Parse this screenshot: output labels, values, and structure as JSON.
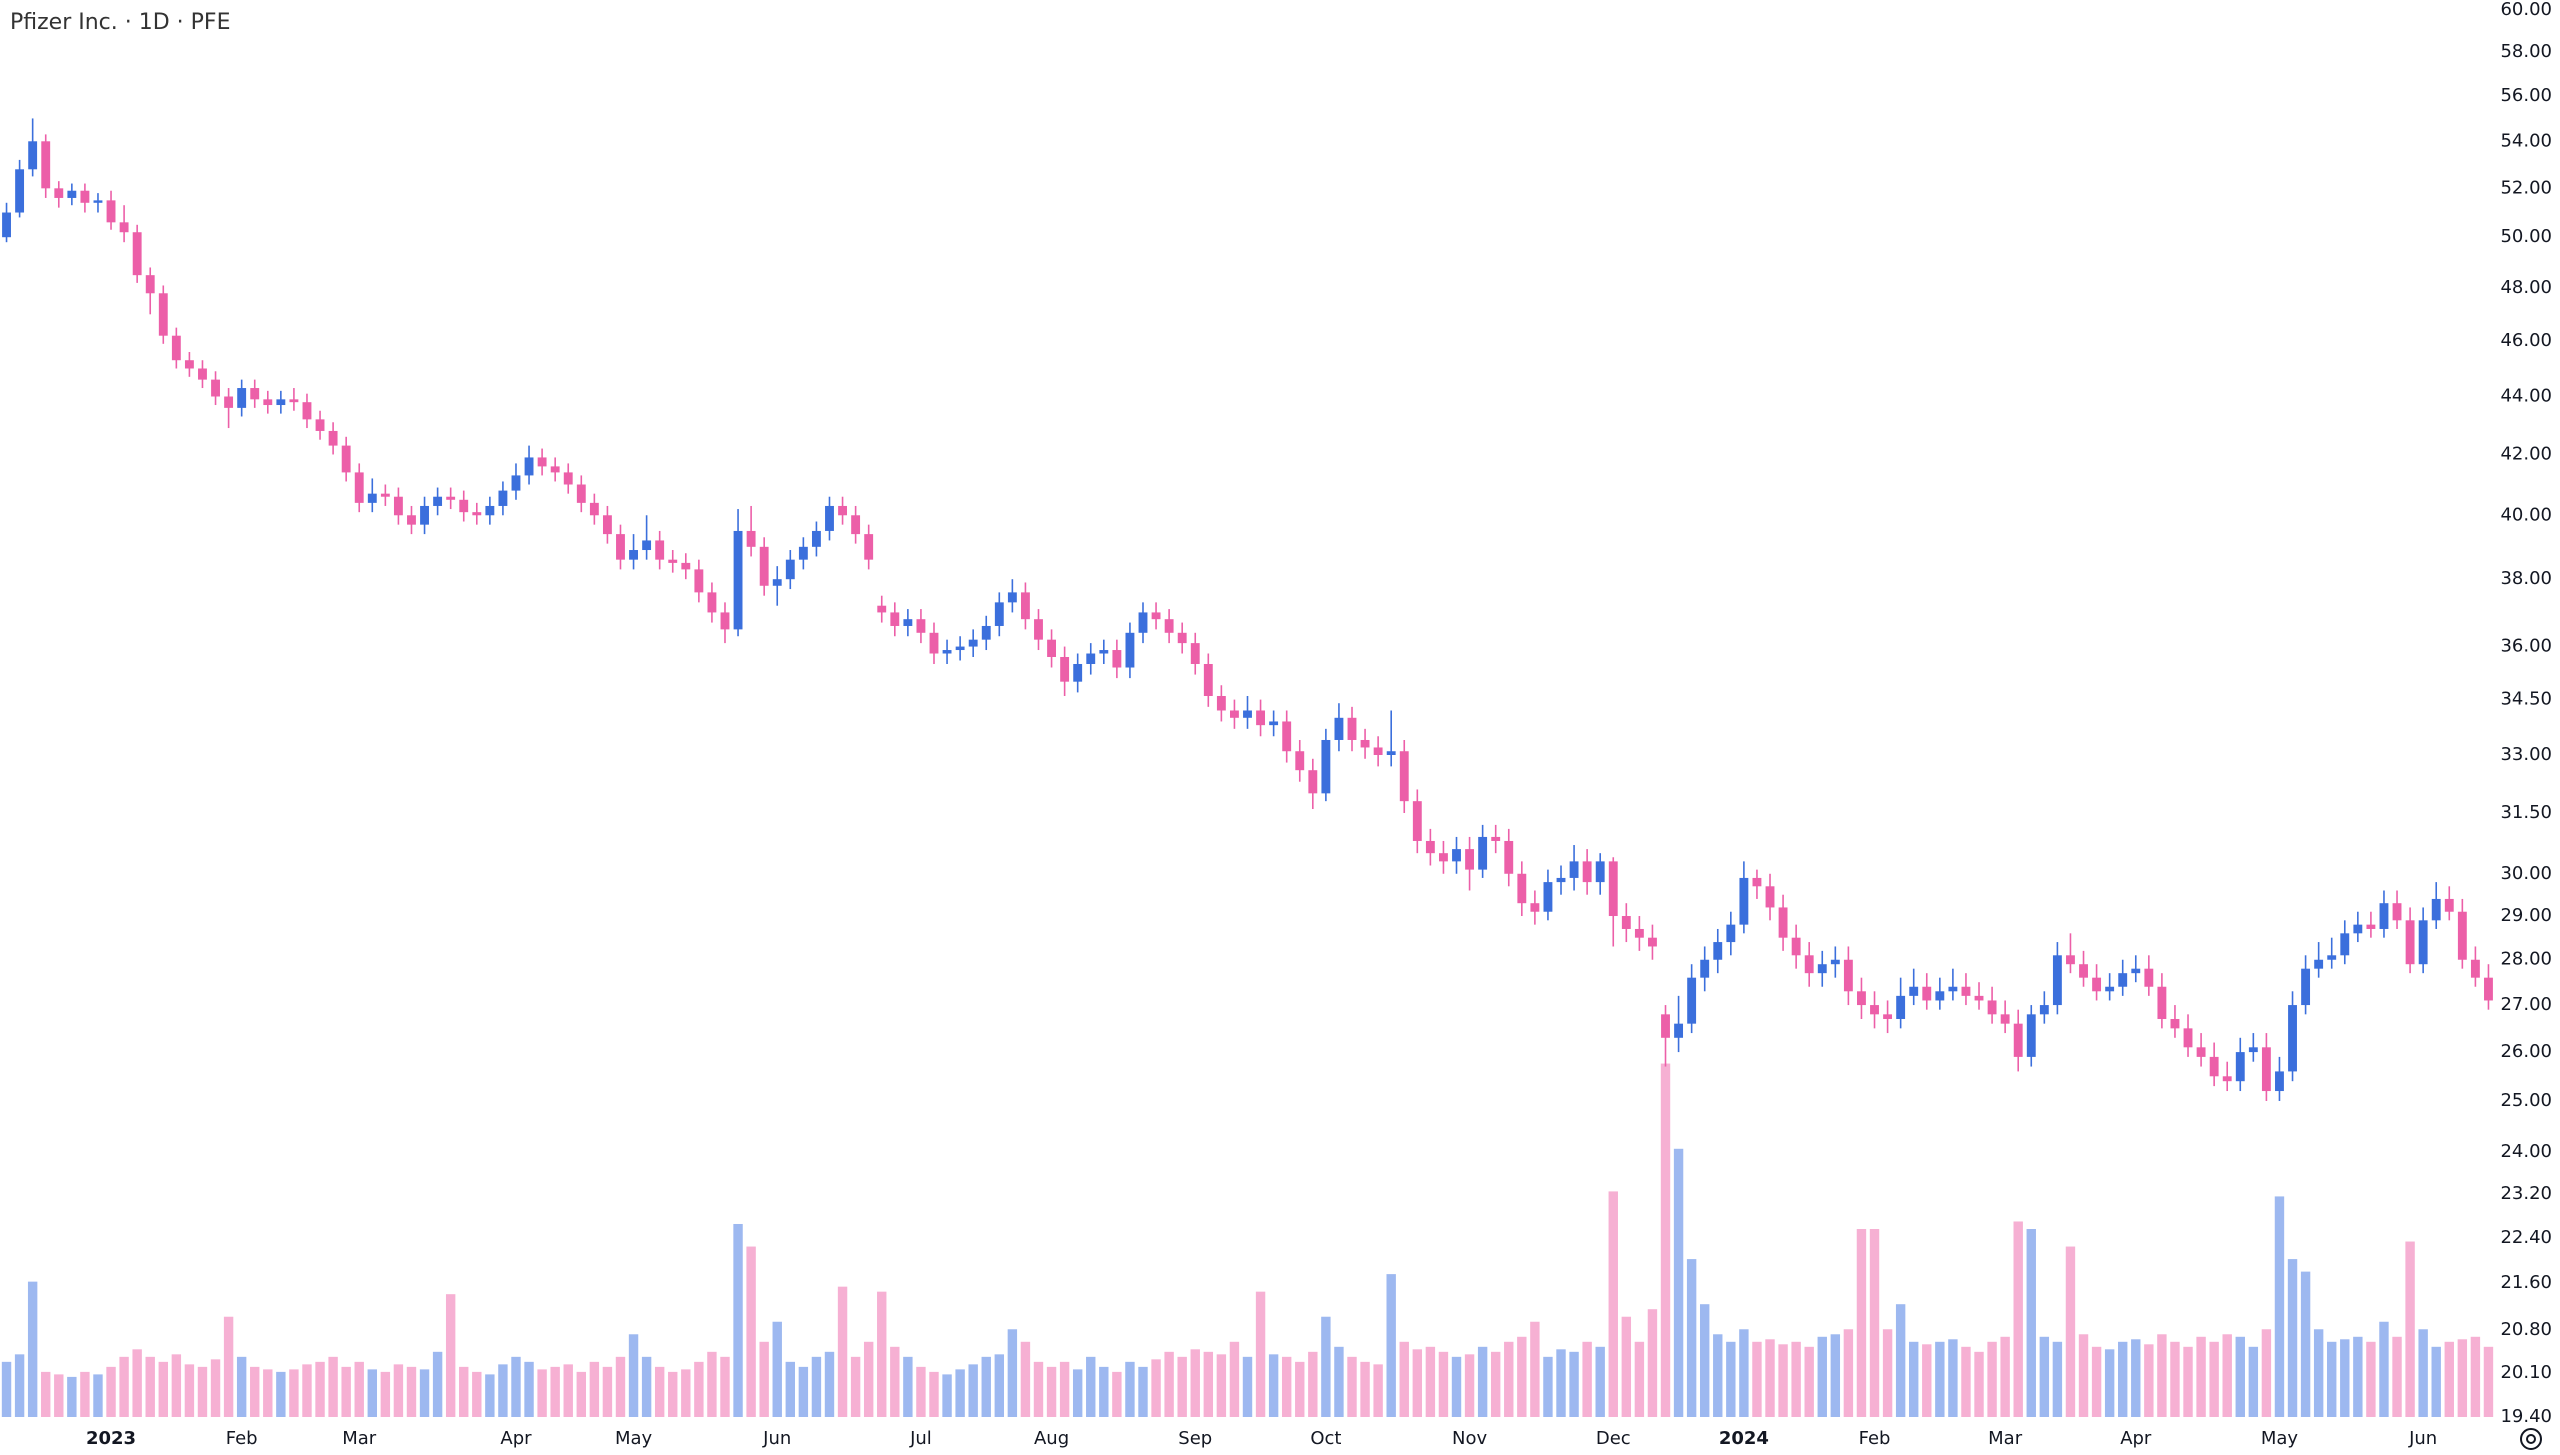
{
  "chart_data": {
    "type": "candlestick",
    "title": "Pfizer Inc. · 1D · PFE",
    "log_scale": true,
    "grid": false,
    "up_color": "#3b6fdc",
    "down_color": "#ec5fa8",
    "volume_up_color": "#9db8f0",
    "volume_down_color": "#f6b0d3",
    "xlim": [
      -0.5,
      190.5
    ],
    "xticks": [
      {
        "value": 8,
        "label": "2023"
      },
      {
        "value": 18,
        "label": "Feb"
      },
      {
        "value": 27,
        "label": "Mar"
      },
      {
        "value": 39,
        "label": "Apr"
      },
      {
        "value": 48,
        "label": "May"
      },
      {
        "value": 59,
        "label": "Jun"
      },
      {
        "value": 70,
        "label": "Jul"
      },
      {
        "value": 80,
        "label": "Aug"
      },
      {
        "value": 91,
        "label": "Sep"
      },
      {
        "value": 101,
        "label": "Oct"
      },
      {
        "value": 112,
        "label": "Nov"
      },
      {
        "value": 123,
        "label": "Dec"
      },
      {
        "value": 133,
        "label": "2024"
      },
      {
        "value": 143,
        "label": "Feb"
      },
      {
        "value": 153,
        "label": "Mar"
      },
      {
        "value": 163,
        "label": "Apr"
      },
      {
        "value": 174,
        "label": "May"
      },
      {
        "value": 185,
        "label": "Jun"
      }
    ],
    "ylim": [
      19.4,
      60
    ],
    "yticks": [
      {
        "value": 60,
        "label": "60.00"
      },
      {
        "value": 58,
        "label": "58.00"
      },
      {
        "value": 56,
        "label": "56.00"
      },
      {
        "value": 54,
        "label": "54.00"
      },
      {
        "value": 52,
        "label": "52.00"
      },
      {
        "value": 50,
        "label": "50.00"
      },
      {
        "value": 48,
        "label": "48.00"
      },
      {
        "value": 46,
        "label": "46.00"
      },
      {
        "value": 44,
        "label": "44.00"
      },
      {
        "value": 42,
        "label": "42.00"
      },
      {
        "value": 40,
        "label": "40.00"
      },
      {
        "value": 38,
        "label": "38.00"
      },
      {
        "value": 36,
        "label": "36.00"
      },
      {
        "value": 34.5,
        "label": "34.50"
      },
      {
        "value": 33,
        "label": "33.00"
      },
      {
        "value": 31.5,
        "label": "31.50"
      },
      {
        "value": 30,
        "label": "30.00"
      },
      {
        "value": 29,
        "label": "29.00"
      },
      {
        "value": 28,
        "label": "28.00"
      },
      {
        "value": 27,
        "label": "27.00"
      },
      {
        "value": 26,
        "label": "26.00"
      },
      {
        "value": 25,
        "label": "25.00"
      },
      {
        "value": 24,
        "label": "24.00"
      },
      {
        "value": 23.2,
        "label": "23.20"
      },
      {
        "value": 22.4,
        "label": "22.40"
      },
      {
        "value": 21.6,
        "label": "21.60"
      },
      {
        "value": 20.8,
        "label": "20.80"
      },
      {
        "value": 20.1,
        "label": "20.10"
      },
      {
        "value": 19.4,
        "label": "19.40"
      }
    ],
    "volume_lim": [
      0,
      150
    ],
    "ohlc": [
      [
        50.0,
        51.4,
        49.8,
        51.0
      ],
      [
        51.0,
        53.2,
        50.8,
        52.8
      ],
      [
        52.8,
        55.0,
        52.5,
        54.0
      ],
      [
        54.0,
        54.3,
        51.6,
        52.0
      ],
      [
        52.0,
        52.3,
        51.2,
        51.6
      ],
      [
        51.6,
        52.2,
        51.3,
        51.9
      ],
      [
        51.9,
        52.2,
        51.0,
        51.4
      ],
      [
        51.4,
        51.8,
        51.0,
        51.5
      ],
      [
        51.5,
        51.9,
        50.3,
        50.6
      ],
      [
        50.6,
        51.3,
        49.8,
        50.2
      ],
      [
        50.2,
        50.5,
        48.2,
        48.5
      ],
      [
        48.5,
        48.8,
        47.0,
        47.8
      ],
      [
        47.8,
        48.1,
        45.9,
        46.2
      ],
      [
        46.2,
        46.5,
        45.0,
        45.3
      ],
      [
        45.3,
        45.6,
        44.7,
        45.0
      ],
      [
        45.0,
        45.3,
        44.3,
        44.6
      ],
      [
        44.6,
        44.9,
        43.7,
        44.0
      ],
      [
        44.0,
        44.3,
        42.9,
        43.6
      ],
      [
        43.6,
        44.6,
        43.3,
        44.3
      ],
      [
        44.3,
        44.6,
        43.6,
        43.9
      ],
      [
        43.9,
        44.2,
        43.4,
        43.7
      ],
      [
        43.7,
        44.2,
        43.4,
        43.9
      ],
      [
        43.9,
        44.3,
        43.5,
        43.8
      ],
      [
        43.8,
        44.1,
        42.9,
        43.2
      ],
      [
        43.2,
        43.5,
        42.5,
        42.8
      ],
      [
        42.8,
        43.1,
        42.0,
        42.3
      ],
      [
        42.3,
        42.6,
        41.1,
        41.4
      ],
      [
        41.4,
        41.7,
        40.1,
        40.4
      ],
      [
        40.4,
        41.2,
        40.1,
        40.7
      ],
      [
        40.7,
        41.0,
        40.3,
        40.6
      ],
      [
        40.6,
        40.9,
        39.7,
        40.0
      ],
      [
        40.0,
        40.3,
        39.4,
        39.7
      ],
      [
        39.7,
        40.6,
        39.4,
        40.3
      ],
      [
        40.3,
        40.9,
        40.0,
        40.6
      ],
      [
        40.6,
        40.9,
        40.2,
        40.5
      ],
      [
        40.5,
        40.8,
        39.8,
        40.1
      ],
      [
        40.1,
        40.4,
        39.7,
        40.0
      ],
      [
        40.0,
        40.6,
        39.7,
        40.3
      ],
      [
        40.3,
        41.1,
        40.0,
        40.8
      ],
      [
        40.8,
        41.7,
        40.5,
        41.3
      ],
      [
        41.3,
        42.3,
        41.0,
        41.9
      ],
      [
        41.9,
        42.2,
        41.3,
        41.6
      ],
      [
        41.6,
        41.9,
        41.1,
        41.4
      ],
      [
        41.4,
        41.7,
        40.7,
        41.0
      ],
      [
        41.0,
        41.3,
        40.1,
        40.4
      ],
      [
        40.4,
        40.7,
        39.7,
        40.0
      ],
      [
        40.0,
        40.3,
        39.1,
        39.4
      ],
      [
        39.4,
        39.7,
        38.3,
        38.6
      ],
      [
        38.6,
        39.4,
        38.3,
        38.9
      ],
      [
        38.9,
        40.0,
        38.6,
        39.2
      ],
      [
        39.2,
        39.5,
        38.3,
        38.6
      ],
      [
        38.6,
        38.9,
        38.2,
        38.5
      ],
      [
        38.5,
        38.8,
        38.0,
        38.3
      ],
      [
        38.3,
        38.6,
        37.3,
        37.6
      ],
      [
        37.6,
        37.9,
        36.7,
        37.0
      ],
      [
        37.0,
        37.3,
        36.1,
        36.5
      ],
      [
        36.5,
        40.2,
        36.3,
        39.5
      ],
      [
        39.5,
        40.3,
        38.7,
        39.0
      ],
      [
        39.0,
        39.3,
        37.5,
        37.8
      ],
      [
        37.8,
        38.4,
        37.2,
        38.0
      ],
      [
        38.0,
        38.9,
        37.7,
        38.6
      ],
      [
        38.6,
        39.3,
        38.3,
        39.0
      ],
      [
        39.0,
        39.8,
        38.7,
        39.5
      ],
      [
        39.5,
        40.6,
        39.2,
        40.3
      ],
      [
        40.3,
        40.6,
        39.7,
        40.0
      ],
      [
        40.0,
        40.3,
        39.1,
        39.4
      ],
      [
        39.4,
        39.7,
        38.3,
        38.6
      ],
      [
        37.2,
        37.5,
        36.7,
        37.0
      ],
      [
        37.0,
        37.3,
        36.3,
        36.6
      ],
      [
        36.6,
        37.1,
        36.3,
        36.8
      ],
      [
        36.8,
        37.1,
        36.1,
        36.4
      ],
      [
        36.4,
        36.7,
        35.5,
        35.8
      ],
      [
        35.8,
        36.2,
        35.5,
        35.9
      ],
      [
        35.9,
        36.3,
        35.6,
        36.0
      ],
      [
        36.0,
        36.5,
        35.7,
        36.2
      ],
      [
        36.2,
        36.9,
        35.9,
        36.6
      ],
      [
        36.6,
        37.6,
        36.3,
        37.3
      ],
      [
        37.3,
        38.0,
        37.0,
        37.6
      ],
      [
        37.6,
        37.9,
        36.5,
        36.8
      ],
      [
        36.8,
        37.1,
        35.9,
        36.2
      ],
      [
        36.2,
        36.5,
        35.4,
        35.7
      ],
      [
        35.7,
        36.0,
        34.6,
        35.0
      ],
      [
        35.0,
        35.8,
        34.7,
        35.5
      ],
      [
        35.5,
        36.1,
        35.2,
        35.8
      ],
      [
        35.8,
        36.2,
        35.5,
        35.9
      ],
      [
        35.9,
        36.2,
        35.1,
        35.4
      ],
      [
        35.4,
        36.7,
        35.1,
        36.4
      ],
      [
        36.4,
        37.3,
        36.1,
        37.0
      ],
      [
        37.0,
        37.3,
        36.5,
        36.8
      ],
      [
        36.8,
        37.1,
        36.1,
        36.4
      ],
      [
        36.4,
        36.7,
        35.8,
        36.1
      ],
      [
        36.1,
        36.4,
        35.2,
        35.5
      ],
      [
        35.5,
        35.8,
        34.3,
        34.6
      ],
      [
        34.6,
        34.9,
        33.9,
        34.2
      ],
      [
        34.2,
        34.5,
        33.7,
        34.0
      ],
      [
        34.0,
        34.6,
        33.7,
        34.2
      ],
      [
        34.2,
        34.5,
        33.5,
        33.8
      ],
      [
        33.8,
        34.2,
        33.5,
        33.9
      ],
      [
        33.9,
        34.2,
        32.8,
        33.1
      ],
      [
        33.1,
        33.4,
        32.3,
        32.6
      ],
      [
        32.6,
        32.9,
        31.6,
        32.0
      ],
      [
        32.0,
        33.7,
        31.8,
        33.4
      ],
      [
        33.4,
        34.4,
        33.1,
        34.0
      ],
      [
        34.0,
        34.3,
        33.1,
        33.4
      ],
      [
        33.4,
        33.7,
        32.9,
        33.2
      ],
      [
        33.2,
        33.5,
        32.7,
        33.0
      ],
      [
        33.0,
        34.2,
        32.7,
        33.1
      ],
      [
        33.1,
        33.4,
        31.5,
        31.8
      ],
      [
        31.8,
        32.1,
        30.5,
        30.8
      ],
      [
        30.8,
        31.1,
        30.2,
        30.5
      ],
      [
        30.5,
        30.8,
        30.0,
        30.3
      ],
      [
        30.3,
        30.9,
        30.0,
        30.6
      ],
      [
        30.6,
        30.9,
        29.6,
        30.1
      ],
      [
        30.1,
        31.2,
        29.9,
        30.9
      ],
      [
        30.9,
        31.2,
        30.5,
        30.8
      ],
      [
        30.8,
        31.1,
        29.7,
        30.0
      ],
      [
        30.0,
        30.3,
        29.0,
        29.3
      ],
      [
        29.3,
        29.6,
        28.8,
        29.1
      ],
      [
        29.1,
        30.1,
        28.9,
        29.8
      ],
      [
        29.8,
        30.2,
        29.5,
        29.9
      ],
      [
        29.9,
        30.7,
        29.6,
        30.3
      ],
      [
        30.3,
        30.6,
        29.5,
        29.8
      ],
      [
        29.8,
        30.5,
        29.5,
        30.3
      ],
      [
        30.3,
        30.4,
        28.3,
        29.0
      ],
      [
        29.0,
        29.3,
        28.4,
        28.7
      ],
      [
        28.7,
        29.0,
        28.2,
        28.5
      ],
      [
        28.5,
        28.8,
        28.0,
        28.3
      ],
      [
        26.8,
        27.0,
        25.7,
        26.3
      ],
      [
        26.3,
        27.2,
        26.0,
        26.6
      ],
      [
        26.6,
        27.9,
        26.4,
        27.6
      ],
      [
        27.6,
        28.3,
        27.3,
        28.0
      ],
      [
        28.0,
        28.7,
        27.7,
        28.4
      ],
      [
        28.4,
        29.1,
        28.1,
        28.8
      ],
      [
        28.8,
        30.3,
        28.6,
        29.9
      ],
      [
        29.9,
        30.1,
        29.4,
        29.7
      ],
      [
        29.7,
        30.0,
        28.9,
        29.2
      ],
      [
        29.2,
        29.5,
        28.2,
        28.5
      ],
      [
        28.5,
        28.8,
        27.8,
        28.1
      ],
      [
        28.1,
        28.4,
        27.4,
        27.7
      ],
      [
        27.7,
        28.2,
        27.4,
        27.9
      ],
      [
        27.9,
        28.3,
        27.6,
        28.0
      ],
      [
        28.0,
        28.3,
        27.0,
        27.3
      ],
      [
        27.3,
        27.6,
        26.7,
        27.0
      ],
      [
        27.0,
        27.3,
        26.5,
        26.8
      ],
      [
        26.8,
        27.1,
        26.4,
        26.7
      ],
      [
        26.7,
        27.6,
        26.5,
        27.2
      ],
      [
        27.2,
        27.8,
        27.0,
        27.4
      ],
      [
        27.4,
        27.7,
        26.9,
        27.1
      ],
      [
        27.1,
        27.6,
        26.9,
        27.3
      ],
      [
        27.3,
        27.8,
        27.1,
        27.4
      ],
      [
        27.4,
        27.7,
        27.0,
        27.2
      ],
      [
        27.2,
        27.5,
        26.9,
        27.1
      ],
      [
        27.1,
        27.4,
        26.6,
        26.8
      ],
      [
        26.8,
        27.1,
        26.4,
        26.6
      ],
      [
        26.6,
        26.9,
        25.6,
        25.9
      ],
      [
        25.9,
        27.0,
        25.7,
        26.8
      ],
      [
        26.8,
        27.3,
        26.6,
        27.0
      ],
      [
        27.0,
        28.4,
        26.8,
        28.1
      ],
      [
        28.1,
        28.6,
        27.7,
        27.9
      ],
      [
        27.9,
        28.2,
        27.4,
        27.6
      ],
      [
        27.6,
        27.9,
        27.1,
        27.3
      ],
      [
        27.3,
        27.7,
        27.1,
        27.4
      ],
      [
        27.4,
        28.0,
        27.2,
        27.7
      ],
      [
        27.7,
        28.1,
        27.5,
        27.8
      ],
      [
        27.8,
        28.1,
        27.2,
        27.4
      ],
      [
        27.4,
        27.7,
        26.5,
        26.7
      ],
      [
        26.7,
        27.0,
        26.3,
        26.5
      ],
      [
        26.5,
        26.8,
        25.9,
        26.1
      ],
      [
        26.1,
        26.4,
        25.7,
        25.9
      ],
      [
        25.9,
        26.2,
        25.3,
        25.5
      ],
      [
        25.5,
        25.8,
        25.2,
        25.4
      ],
      [
        25.4,
        26.3,
        25.2,
        26.0
      ],
      [
        26.0,
        26.4,
        25.8,
        26.1
      ],
      [
        26.1,
        26.4,
        25.0,
        25.2
      ],
      [
        25.2,
        25.9,
        25.0,
        25.6
      ],
      [
        25.6,
        27.3,
        25.4,
        27.0
      ],
      [
        27.0,
        28.1,
        26.8,
        27.8
      ],
      [
        27.8,
        28.4,
        27.6,
        28.0
      ],
      [
        28.0,
        28.5,
        27.8,
        28.1
      ],
      [
        28.1,
        28.9,
        27.9,
        28.6
      ],
      [
        28.6,
        29.1,
        28.4,
        28.8
      ],
      [
        28.8,
        29.1,
        28.5,
        28.7
      ],
      [
        28.7,
        29.6,
        28.5,
        29.3
      ],
      [
        29.3,
        29.6,
        28.7,
        28.9
      ],
      [
        28.9,
        29.2,
        27.7,
        27.9
      ],
      [
        27.9,
        29.2,
        27.7,
        28.9
      ],
      [
        28.9,
        29.8,
        28.7,
        29.4
      ],
      [
        29.4,
        29.7,
        28.9,
        29.1
      ],
      [
        29.1,
        29.4,
        27.8,
        28.0
      ],
      [
        28.0,
        28.3,
        27.4,
        27.6
      ],
      [
        27.6,
        27.9,
        26.9,
        27.1
      ]
    ],
    "volume": [
      22,
      25,
      54,
      18,
      17,
      16,
      18,
      17,
      20,
      24,
      27,
      24,
      22,
      25,
      21,
      20,
      23,
      40,
      24,
      20,
      19,
      18,
      19,
      21,
      22,
      24,
      20,
      22,
      19,
      18,
      21,
      20,
      19,
      26,
      49,
      20,
      18,
      17,
      21,
      24,
      22,
      19,
      20,
      21,
      18,
      22,
      20,
      24,
      33,
      24,
      20,
      18,
      19,
      22,
      26,
      24,
      77,
      68,
      30,
      38,
      22,
      20,
      24,
      26,
      52,
      24,
      30,
      50,
      28,
      24,
      20,
      18,
      17,
      19,
      21,
      24,
      25,
      35,
      30,
      22,
      20,
      22,
      19,
      24,
      20,
      18,
      22,
      20,
      23,
      26,
      24,
      27,
      26,
      25,
      30,
      24,
      50,
      25,
      24,
      22,
      26,
      40,
      28,
      24,
      22,
      21,
      57,
      30,
      27,
      28,
      26,
      24,
      25,
      28,
      26,
      30,
      32,
      38,
      24,
      27,
      26,
      30,
      28,
      90,
      40,
      30,
      43,
      141,
      107,
      63,
      45,
      33,
      30,
      35,
      30,
      31,
      29,
      30,
      28,
      32,
      33,
      35,
      75,
      75,
      35,
      45,
      30,
      29,
      30,
      31,
      28,
      26,
      30,
      32,
      78,
      75,
      32,
      30,
      68,
      33,
      28,
      27,
      30,
      31,
      29,
      33,
      30,
      28,
      32,
      30,
      33,
      32,
      28,
      35,
      88,
      63,
      58,
      35,
      30,
      31,
      32,
      30,
      38,
      32,
      70,
      35,
      28,
      30,
      31,
      32,
      28
    ]
  }
}
